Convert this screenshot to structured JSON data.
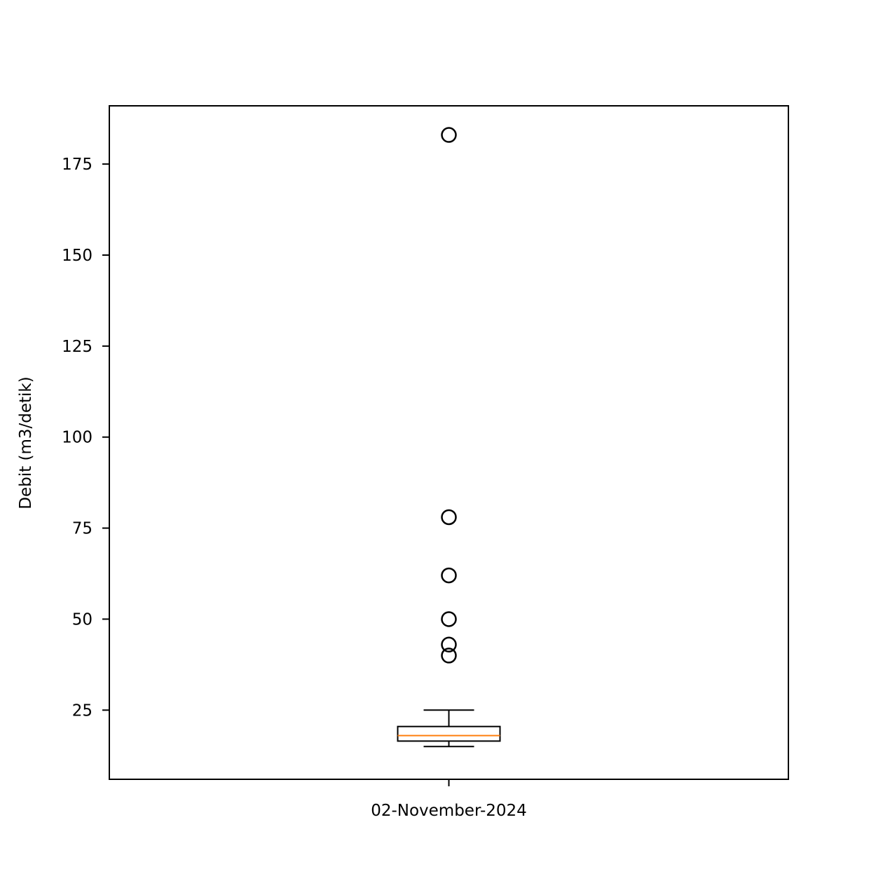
{
  "chart_data": {
    "type": "boxplot",
    "title": "",
    "xlabel": "",
    "ylabel": "Debit (m3/detik)",
    "categories": [
      "02-November-2024"
    ],
    "ylim": [
      6,
      191
    ],
    "yticks": [
      25,
      50,
      75,
      100,
      125,
      150,
      175
    ],
    "grid": false,
    "boxes": [
      {
        "category": "02-November-2024",
        "whisker_low": 15,
        "q1": 16.5,
        "median": 18.0,
        "q3": 20.5,
        "whisker_high": 25,
        "outliers": [
          183,
          78,
          62,
          50,
          43,
          40
        ]
      }
    ],
    "colors": {
      "box": "#000000",
      "median": "#ff7f0e",
      "outlier": "#000000"
    }
  }
}
